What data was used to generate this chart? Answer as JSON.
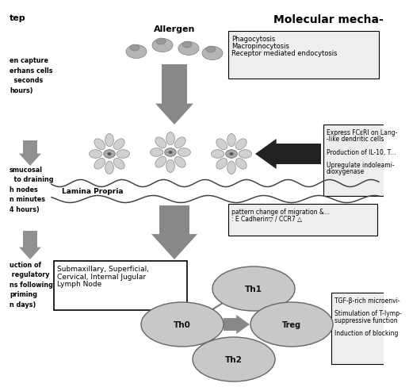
{
  "title_right": "Molecular mecha-",
  "title_left": "tep",
  "bg_color": "#ffffff",
  "allergen_label": "Allergen",
  "lamina_propria_label": "Lamina Propria",
  "box1_lines": [
    "Phagocytosis",
    "Macropinocytosis",
    "Receptor mediated endocytosis"
  ],
  "box2_lines": [
    "Express FCεRI on Lang-",
    "-like dendritic cells",
    "",
    "Production of IL-10, T...",
    "",
    "Upregulate indoleami-",
    "dioxygenase"
  ],
  "box3_lines": [
    "pattern change of migration &...",
    ": E Cadherin▽ / CCR7 △"
  ],
  "box4_lines": [
    "Submaxillary, Superficial,",
    "Cervical, Internal Jugular",
    "Lymph Node"
  ],
  "box5_lines": [
    "TGF-β-rich microenvi-",
    "",
    "Stimulation of T-lymp-",
    "suppressive function",
    "",
    "Induction of blocking"
  ],
  "left_text1": "en capture\nerhans cells\n  seconds\nhours)",
  "left_text2": "smucosal\n  to draining\nh nodes\nn minutes\n4 hours)",
  "left_text3": "uction of\n regulatory\nns following\npriming\nn days)",
  "th0_label": "Th0",
  "th1_label": "Th1",
  "th2_label": "Th2",
  "treg_label": "Treg",
  "arrow_gray": "#808080",
  "arrow_dark": "#303030",
  "box_edge": "#000000",
  "text_color": "#000000",
  "cell_color": "#c8c8c8",
  "box_fill": "#f2f2f2"
}
